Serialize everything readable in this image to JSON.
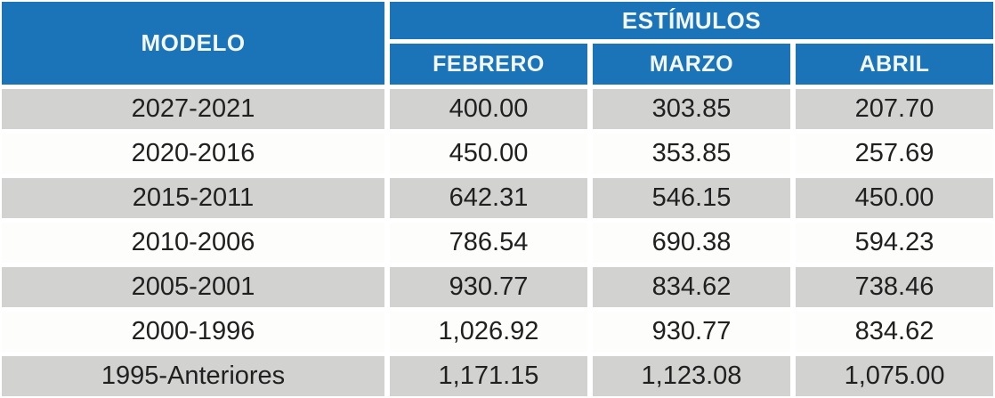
{
  "table": {
    "header": {
      "modelo_label": "MODELO",
      "group_label": "ESTÍMULOS",
      "months": [
        "FEBRERO",
        "MARZO",
        "ABRIL"
      ]
    },
    "rows": [
      {
        "modelo": "2027-2021",
        "values": [
          "400.00",
          "303.85",
          "207.70"
        ]
      },
      {
        "modelo": "2020-2016",
        "values": [
          "450.00",
          "353.85",
          "257.69"
        ]
      },
      {
        "modelo": "2015-2011",
        "values": [
          "642.31",
          "546.15",
          "450.00"
        ]
      },
      {
        "modelo": "2010-2006",
        "values": [
          "786.54",
          "690.38",
          "594.23"
        ]
      },
      {
        "modelo": "2005-2001",
        "values": [
          "930.77",
          "834.62",
          "738.46"
        ]
      },
      {
        "modelo": "2000-1996",
        "values": [
          "1,026.92",
          "930.77",
          "834.62"
        ]
      },
      {
        "modelo": "1995-Anteriores",
        "values": [
          "1,171.15",
          "1,123.08",
          "1,075.00"
        ]
      }
    ],
    "colors": {
      "header_bg": "#1C74B8",
      "header_text": "#F2F7FB",
      "row_gray": "#D2D2D1",
      "row_white": "#FDFDFB",
      "data_text": "#202020",
      "page_bg": "#FFFFFF"
    }
  },
  "chart_data": {
    "type": "table",
    "title": "ESTÍMULOS",
    "columns": [
      "MODELO",
      "FEBRERO",
      "MARZO",
      "ABRIL"
    ],
    "rows": [
      [
        "2027-2021",
        400.0,
        303.85,
        207.7
      ],
      [
        "2020-2016",
        450.0,
        353.85,
        257.69
      ],
      [
        "2015-2011",
        642.31,
        546.15,
        450.0
      ],
      [
        "2010-2006",
        786.54,
        690.38,
        594.23
      ],
      [
        "2005-2001",
        930.77,
        834.62,
        738.46
      ],
      [
        "2000-1996",
        1026.92,
        930.77,
        834.62
      ],
      [
        "1995-Anteriores",
        1171.15,
        1123.08,
        1075.0
      ]
    ]
  }
}
